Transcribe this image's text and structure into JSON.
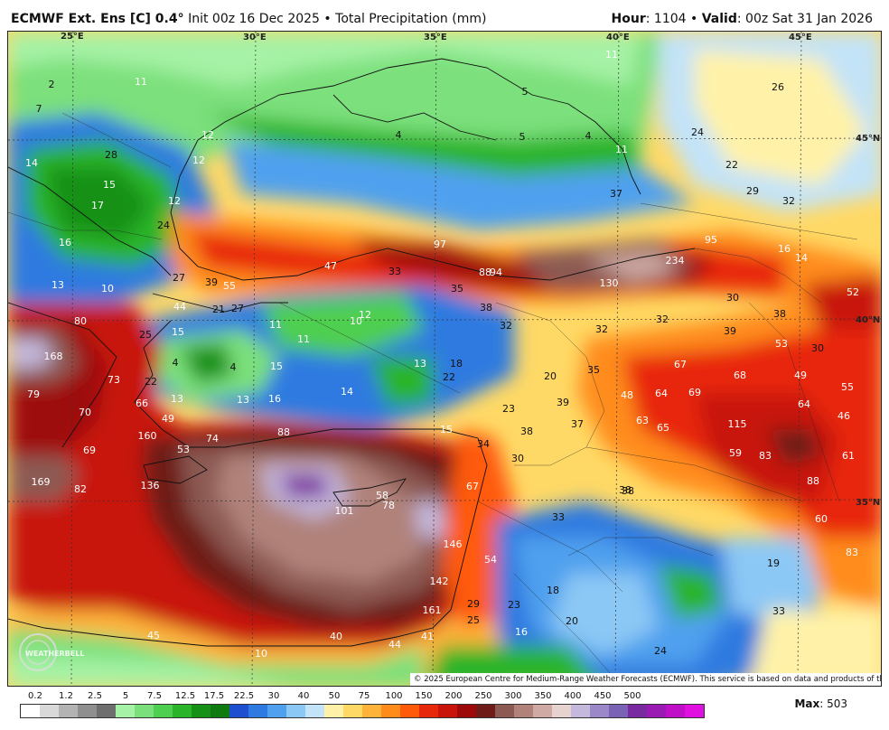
{
  "header": {
    "model": "ECMWF Ext. Ens [C] 0.4",
    "degree": "°",
    "init": " Init 00z 16 Dec 2025",
    "sep": " • ",
    "field": "Total Precipitation (mm)",
    "hour_label": "Hour",
    "hour_value": ": 1104",
    "valid_label": "Valid",
    "valid_value": ": 00z Sat 31 Jan 2026"
  },
  "gridlines": {
    "longitudes": [
      "25°E",
      "30°E",
      "35°E",
      "40°E",
      "45°E"
    ],
    "latitudes": [
      "45°N",
      "40°N",
      "35°N"
    ]
  },
  "copyright": "© 2025 European Centre for Medium-Range Weather Forecasts (ECMWF). This service is based on data and products of the ECMWF.",
  "logo_text": "WEATHERBELL",
  "legend": {
    "ticks": [
      "0.2",
      "1.2",
      "2.5",
      "5",
      "7.5",
      "12.5",
      "17.5",
      "22.5",
      "30",
      "40",
      "50",
      "75",
      "100",
      "150",
      "200",
      "250",
      "300",
      "350",
      "400",
      "450",
      "500"
    ],
    "colors": [
      "#ffffff",
      "#d9d9d9",
      "#b3b3b3",
      "#8f8f8f",
      "#6e6e6e",
      "#a6f2a6",
      "#7be07b",
      "#4fcf4f",
      "#29b429",
      "#169116",
      "#0f7a0f",
      "#1f4fd1",
      "#2f7ae0",
      "#4fa0ee",
      "#8cc8f5",
      "#c3e3f8",
      "#fff2a8",
      "#ffd966",
      "#ffb33a",
      "#ff8c1a",
      "#ff5a0a",
      "#e8280a",
      "#c8140a",
      "#9e0a0a",
      "#6e1c18",
      "#8c5a52",
      "#b0827a",
      "#cfaaa4",
      "#e6d2cf",
      "#c4b8dc",
      "#9a88c8",
      "#7a62b4",
      "#7a2aa0",
      "#9a1ab4",
      "#bf10c8",
      "#e010e0"
    ],
    "max_label": "Max",
    "max_value": ": 503"
  },
  "map_labels": [
    {
      "v": "2"
    },
    {
      "v": "11"
    },
    {
      "v": "7"
    },
    {
      "v": "14"
    },
    {
      "v": "28"
    },
    {
      "v": "15"
    },
    {
      "v": "17"
    },
    {
      "v": "12"
    },
    {
      "v": "12"
    },
    {
      "v": "12"
    },
    {
      "v": "24"
    },
    {
      "v": "16"
    },
    {
      "v": "13"
    },
    {
      "v": "10"
    },
    {
      "v": "27"
    },
    {
      "v": "39"
    },
    {
      "v": "55"
    },
    {
      "v": "44"
    },
    {
      "v": "21"
    },
    {
      "v": "27"
    },
    {
      "v": "80"
    },
    {
      "v": "25"
    },
    {
      "v": "15"
    },
    {
      "v": "168"
    },
    {
      "v": "4"
    },
    {
      "v": "4"
    },
    {
      "v": "73"
    },
    {
      "v": "22"
    },
    {
      "v": "79"
    },
    {
      "v": "70"
    },
    {
      "v": "66"
    },
    {
      "v": "13"
    },
    {
      "v": "13"
    },
    {
      "v": "16"
    },
    {
      "v": "49"
    },
    {
      "v": "69"
    },
    {
      "v": "160"
    },
    {
      "v": "53"
    },
    {
      "v": "74"
    },
    {
      "v": "88"
    },
    {
      "v": "169"
    },
    {
      "v": "82"
    },
    {
      "v": "136"
    },
    {
      "v": "101"
    },
    {
      "v": "58"
    },
    {
      "v": "78"
    },
    {
      "v": "67"
    },
    {
      "v": "146"
    },
    {
      "v": "54"
    },
    {
      "v": "142"
    },
    {
      "v": "161"
    },
    {
      "v": "29"
    },
    {
      "v": "25"
    },
    {
      "v": "45"
    },
    {
      "v": "10"
    },
    {
      "v": "40"
    },
    {
      "v": "44"
    },
    {
      "v": "41"
    },
    {
      "v": "16"
    },
    {
      "v": "23"
    },
    {
      "v": "18"
    },
    {
      "v": "20"
    },
    {
      "v": "24"
    },
    {
      "v": "33"
    },
    {
      "v": "38"
    },
    {
      "v": "30"
    },
    {
      "v": "34"
    },
    {
      "v": "38"
    },
    {
      "v": "37"
    },
    {
      "v": "39"
    },
    {
      "v": "23"
    },
    {
      "v": "15"
    },
    {
      "v": "20"
    },
    {
      "v": "35"
    },
    {
      "v": "22"
    },
    {
      "v": "18"
    },
    {
      "v": "13"
    },
    {
      "v": "14"
    },
    {
      "v": "15"
    },
    {
      "v": "11"
    },
    {
      "v": "11"
    },
    {
      "v": "10"
    },
    {
      "v": "12"
    },
    {
      "v": "47"
    },
    {
      "v": "33"
    },
    {
      "v": "35"
    },
    {
      "v": "38"
    },
    {
      "v": "32"
    },
    {
      "v": "32"
    },
    {
      "v": "32"
    },
    {
      "v": "97"
    },
    {
      "v": "88"
    },
    {
      "v": "94"
    },
    {
      "v": "130"
    },
    {
      "v": "234"
    },
    {
      "v": "95"
    },
    {
      "v": "37"
    },
    {
      "v": "11"
    },
    {
      "v": "11"
    },
    {
      "v": "5"
    },
    {
      "v": "5"
    },
    {
      "v": "4"
    },
    {
      "v": "4"
    },
    {
      "v": "24"
    },
    {
      "v": "26"
    },
    {
      "v": "22"
    },
    {
      "v": "29"
    },
    {
      "v": "32"
    },
    {
      "v": "16"
    },
    {
      "v": "14"
    },
    {
      "v": "30"
    },
    {
      "v": "38"
    },
    {
      "v": "52"
    },
    {
      "v": "39"
    },
    {
      "v": "53"
    },
    {
      "v": "30"
    },
    {
      "v": "67"
    },
    {
      "v": "68"
    },
    {
      "v": "49"
    },
    {
      "v": "55"
    },
    {
      "v": "48"
    },
    {
      "v": "64"
    },
    {
      "v": "69"
    },
    {
      "v": "64"
    },
    {
      "v": "46"
    },
    {
      "v": "63"
    },
    {
      "v": "65"
    },
    {
      "v": "115"
    },
    {
      "v": "59"
    },
    {
      "v": "83"
    },
    {
      "v": "61"
    },
    {
      "v": "88"
    },
    {
      "v": "60"
    },
    {
      "v": "83"
    },
    {
      "v": "19"
    },
    {
      "v": "33"
    },
    {
      "v": "38"
    }
  ]
}
